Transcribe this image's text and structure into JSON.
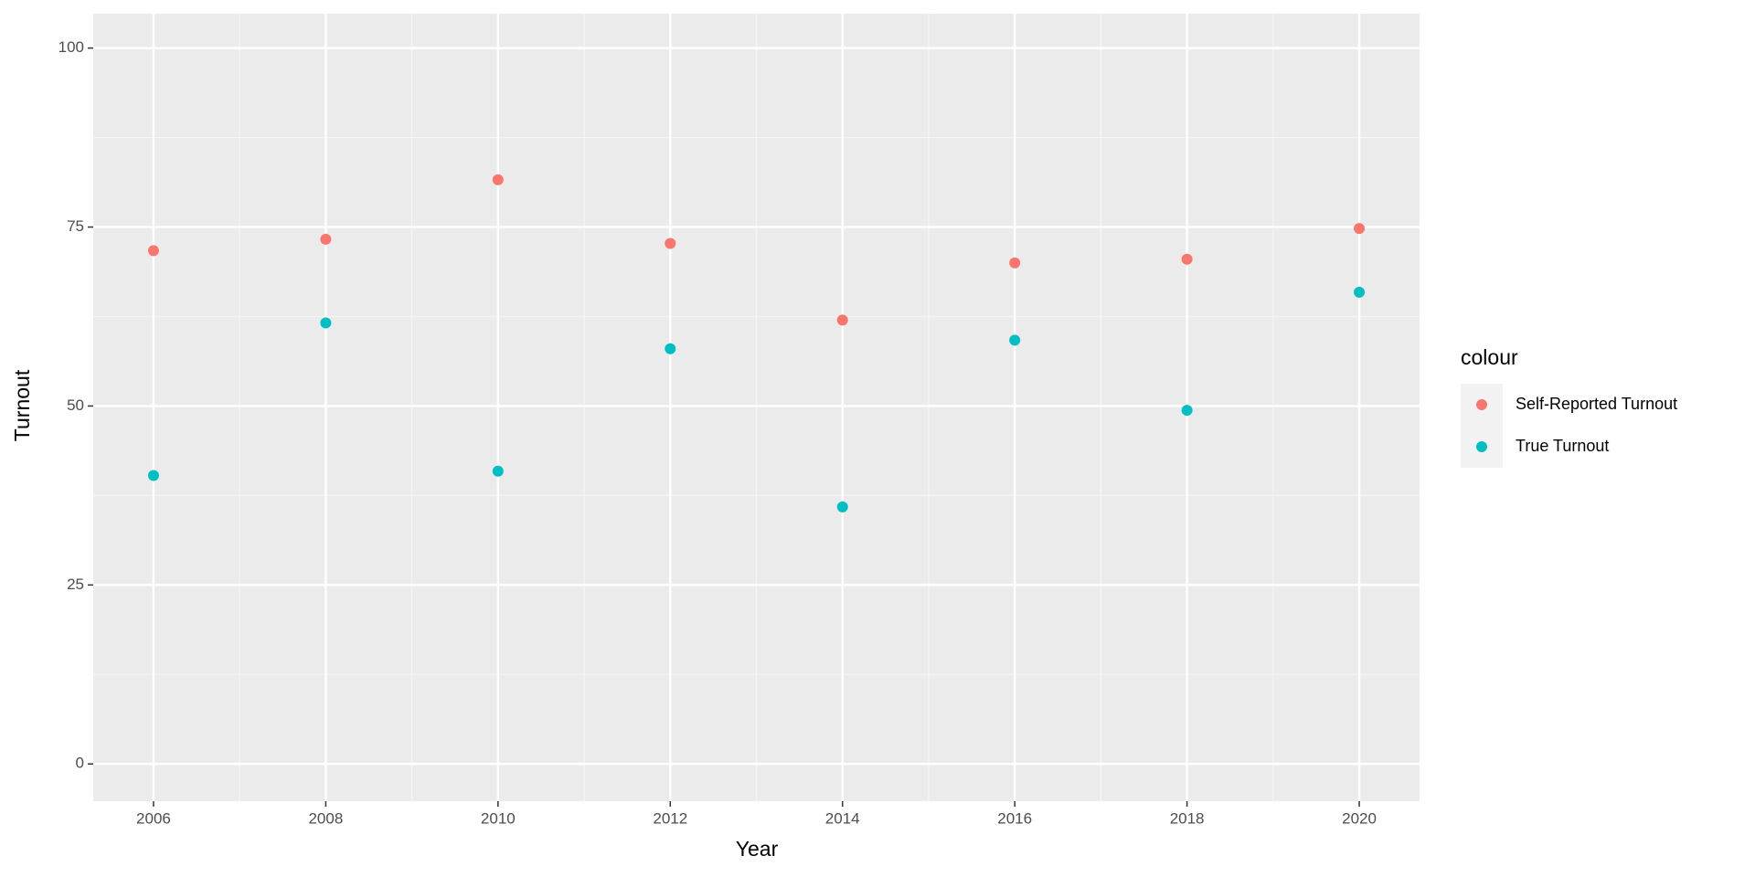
{
  "chart_data": {
    "type": "scatter",
    "x_label": "Year",
    "y_label": "Turnout",
    "x": [
      2006,
      2008,
      2010,
      2012,
      2014,
      2016,
      2018,
      2020
    ],
    "series": [
      {
        "name": "Self-Reported Turnout",
        "color": "#f8766d",
        "values": [
          71.7,
          73.3,
          81.6,
          72.7,
          62.0,
          70.0,
          70.5,
          74.8
        ]
      },
      {
        "name": "True Turnout",
        "color": "#00bfc4",
        "values": [
          40.3,
          61.6,
          40.9,
          58.0,
          35.9,
          59.2,
          49.4,
          65.9
        ]
      }
    ],
    "legend_title": "colour",
    "legend": "right",
    "xlim": [
      2005.3,
      2020.7
    ],
    "xticks": [
      2006,
      2008,
      2010,
      2012,
      2014,
      2016,
      2018,
      2020
    ],
    "ylim": [
      -5.2,
      104.8
    ],
    "yticks": [
      0,
      25,
      50,
      75,
      100
    ],
    "grid": true
  }
}
